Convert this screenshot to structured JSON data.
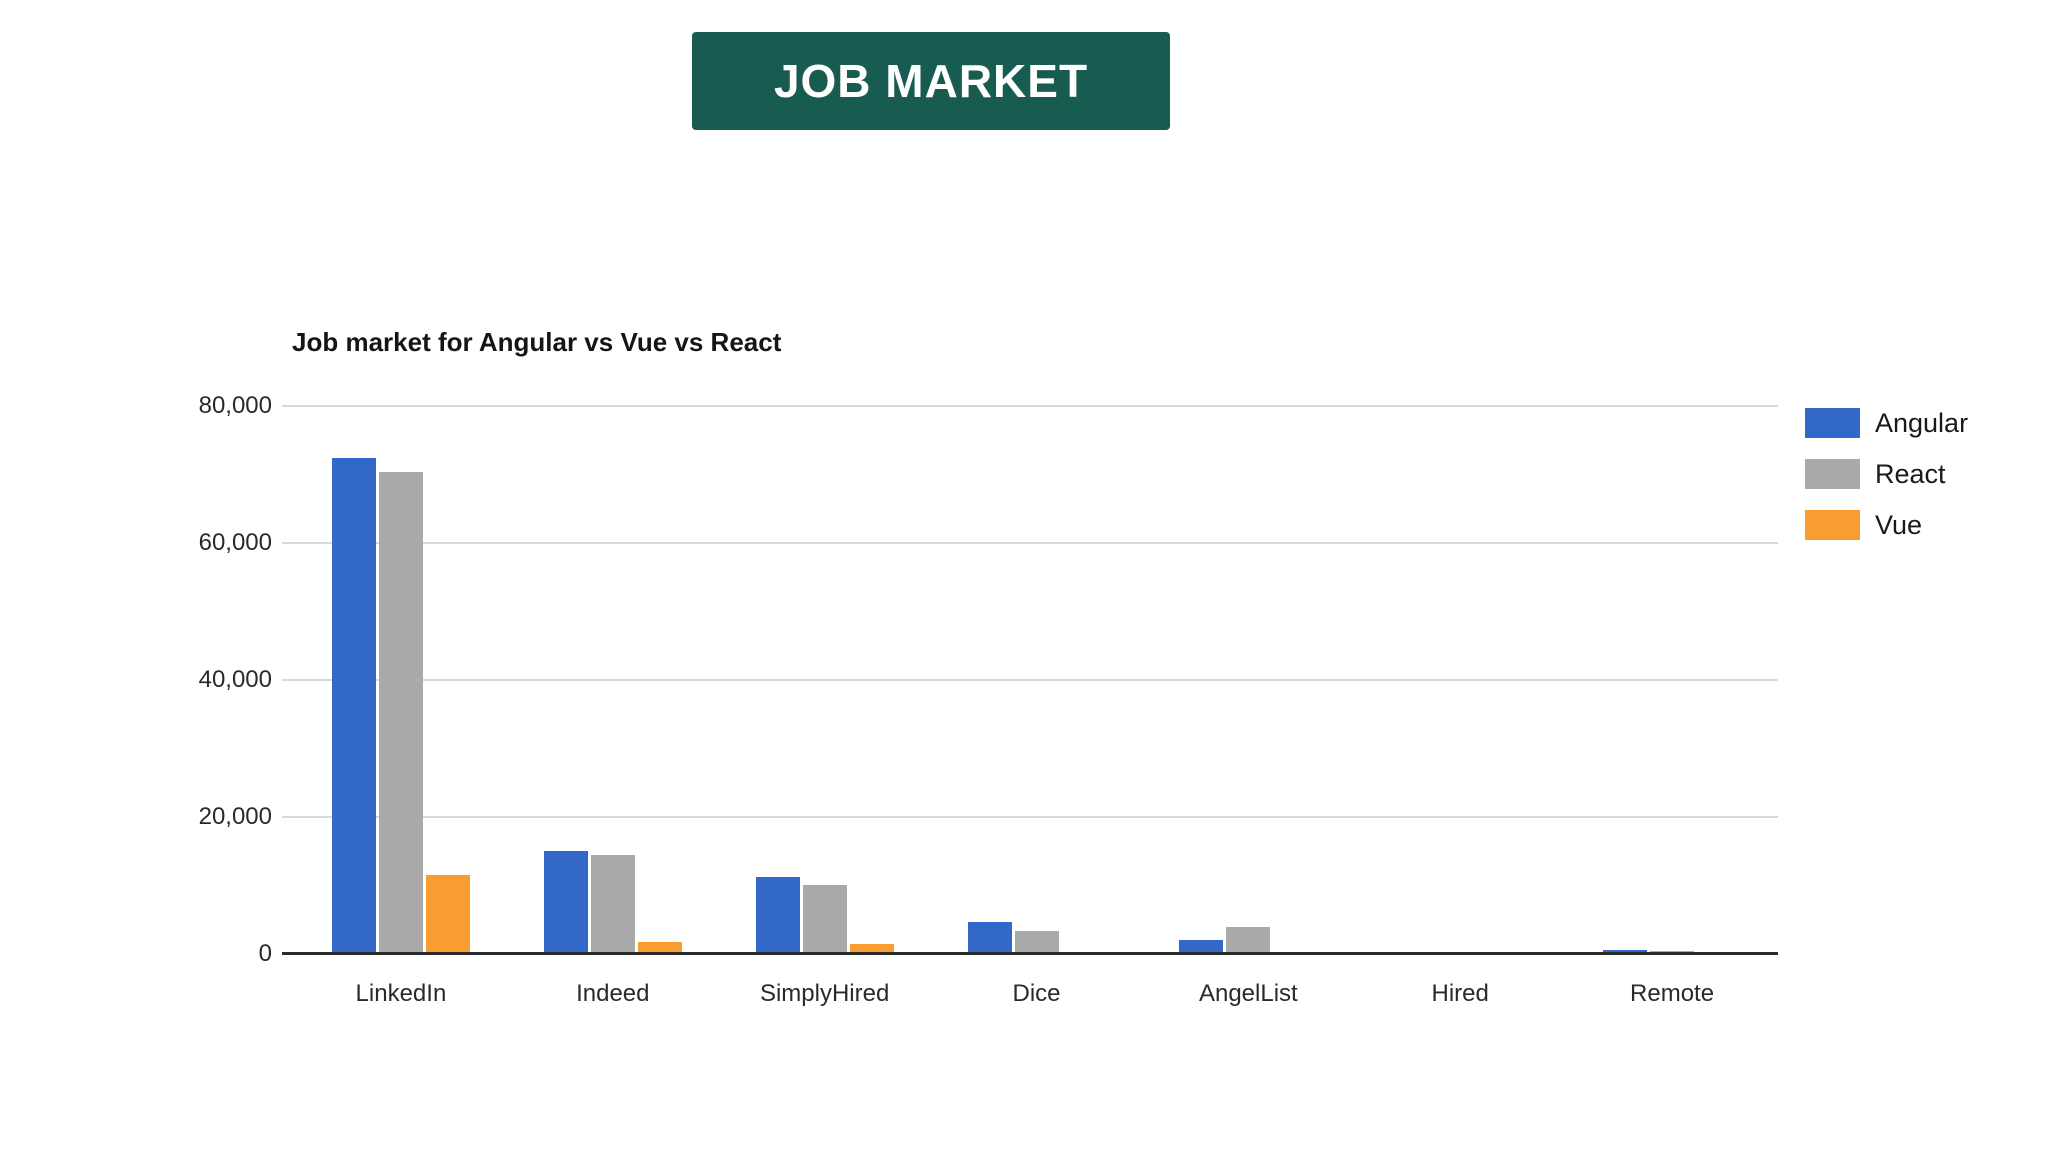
{
  "banner": {
    "title": "JOB MARKET"
  },
  "colors": {
    "banner_bg": "#175b51",
    "angular": "#3269c8",
    "react": "#a9a9a9",
    "vue": "#f99d33",
    "gridline": "#d9d9d9",
    "axis_line": "#2b2b2b"
  },
  "chart_data": {
    "type": "bar",
    "title": "Job market for Angular vs Vue vs React",
    "categories": [
      "LinkedIn",
      "Indeed",
      "SimplyHired",
      "Dice",
      "AngelList",
      "Hired",
      "Remote"
    ],
    "series": [
      {
        "name": "Angular",
        "color_key": "angular",
        "values": [
          72400,
          15100,
          11200,
          4700,
          2100,
          0,
          550
        ]
      },
      {
        "name": "React",
        "color_key": "react",
        "values": [
          70300,
          14400,
          10100,
          3300,
          4000,
          0,
          500
        ]
      },
      {
        "name": "Vue",
        "color_key": "vue",
        "values": [
          11600,
          1800,
          1400,
          250,
          250,
          0,
          0
        ]
      }
    ],
    "xlabel": "",
    "ylabel": "",
    "ylim": [
      0,
      80000
    ],
    "ytick_step": 20000,
    "ytick_labels": [
      "0",
      "20,000",
      "40,000",
      "60,000",
      "80,000"
    ],
    "grid": true,
    "legend_position": "right"
  }
}
